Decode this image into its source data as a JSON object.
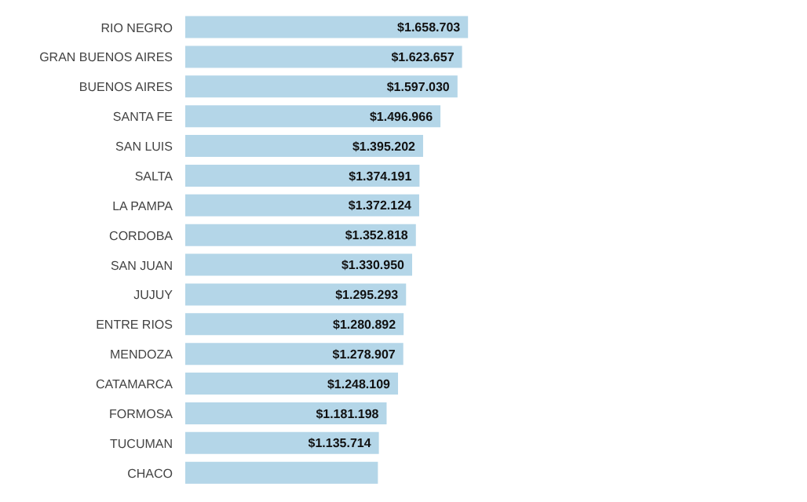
{
  "chart_data": {
    "type": "bar",
    "orientation": "horizontal",
    "categories": [
      "RIO NEGRO",
      "GRAN BUENOS AIRES",
      "BUENOS AIRES",
      "SANTA FE",
      "SAN LUIS",
      "SALTA",
      "LA PAMPA",
      "CORDOBA",
      "SAN JUAN",
      "JUJUY",
      "ENTRE RIOS",
      "MENDOZA",
      "CATAMARCA",
      "FORMOSA",
      "TUCUMAN",
      "CHACO"
    ],
    "values": [
      1658703,
      1623657,
      1597030,
      1496966,
      1395202,
      1374191,
      1372124,
      1352818,
      1330950,
      1295293,
      1280892,
      1278907,
      1248109,
      1181198,
      1135714,
      1130000
    ],
    "value_labels": [
      "$1.658.703",
      "$1.623.657",
      "$1.597.030",
      "$1.496.966",
      "$1.395.202",
      "$1.374.191",
      "$1.372.124",
      "$1.352.818",
      "$1.330.950",
      "$1.295.293",
      "$1.280.892",
      "$1.278.907",
      "$1.248.109",
      "$1.181.198",
      "$1.135.714",
      null
    ],
    "color": "#b4d6e8",
    "tick_labels": "y"
  }
}
